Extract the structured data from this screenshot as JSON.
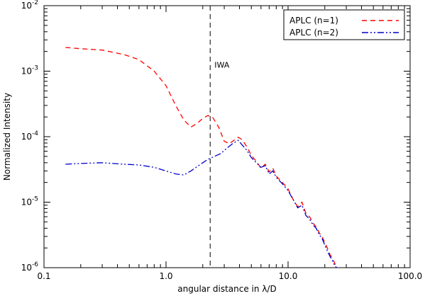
{
  "chart_data": {
    "type": "line",
    "xlabel": "angular distance in λ/D",
    "ylabel": "Normalized Intensity",
    "xscale": "log",
    "yscale": "log",
    "xlim": [
      0.1,
      100.0
    ],
    "ylim": [
      1e-06,
      0.01
    ],
    "x_tick_labels": [
      {
        "value": 0.1,
        "label": "0.1"
      },
      {
        "value": 1.0,
        "label": "1.0"
      },
      {
        "value": 10.0,
        "label": "10.0"
      },
      {
        "value": 100.0,
        "label": "100.0"
      }
    ],
    "y_tick_labels": [
      {
        "value": 1e-06,
        "base": "10",
        "exp": "-6"
      },
      {
        "value": 1e-05,
        "base": "10",
        "exp": "-5"
      },
      {
        "value": 0.0001,
        "base": "10",
        "exp": "-4"
      },
      {
        "value": 0.001,
        "base": "10",
        "exp": "-3"
      },
      {
        "value": 0.01,
        "base": "10",
        "exp": "-2"
      }
    ],
    "legend_position": "top-right",
    "annotations": [
      {
        "text": "IWA",
        "x": 2.3,
        "y": 0.00125
      }
    ],
    "vline": {
      "x": 2.3,
      "style": "dashed",
      "color": "#000000"
    },
    "series": [
      {
        "name": "APLC (n=1)",
        "color": "#ff0000",
        "style": "dashed",
        "points": [
          [
            0.15,
            0.0023
          ],
          [
            0.2,
            0.0022
          ],
          [
            0.3,
            0.0021
          ],
          [
            0.45,
            0.0018
          ],
          [
            0.6,
            0.0015
          ],
          [
            0.8,
            0.001
          ],
          [
            1.0,
            0.0006
          ],
          [
            1.2,
            0.0003
          ],
          [
            1.4,
            0.00018
          ],
          [
            1.6,
            0.00014
          ],
          [
            1.8,
            0.00016
          ],
          [
            2.0,
            0.00019
          ],
          [
            2.2,
            0.00021
          ],
          [
            2.4,
            0.0002
          ],
          [
            2.7,
            0.00014
          ],
          [
            3.0,
            8.5e-05
          ],
          [
            3.3,
            7.8e-05
          ],
          [
            3.6,
            8.8e-05
          ],
          [
            3.9,
            9.8e-05
          ],
          [
            4.2,
            9e-05
          ],
          [
            4.6,
            7e-05
          ],
          [
            5.0,
            5.2e-05
          ],
          [
            5.5,
            4.2e-05
          ],
          [
            6.0,
            3.3e-05
          ],
          [
            6.5,
            3.8e-05
          ],
          [
            7.0,
            2.9e-05
          ],
          [
            7.5,
            3.3e-05
          ],
          [
            8.0,
            2.5e-05
          ],
          [
            9.0,
            2e-05
          ],
          [
            10.0,
            1.6e-05
          ],
          [
            11.0,
            1.1e-05
          ],
          [
            12.0,
            8.5e-06
          ],
          [
            13.0,
            1e-05
          ],
          [
            14.0,
            6.8e-06
          ],
          [
            15.0,
            6e-06
          ],
          [
            16.0,
            4.8e-06
          ],
          [
            17.0,
            4.2e-06
          ],
          [
            18.0,
            3.4e-06
          ],
          [
            19.0,
            3e-06
          ],
          [
            20.0,
            2.4e-06
          ],
          [
            21.0,
            2e-06
          ],
          [
            22.0,
            1.6e-06
          ],
          [
            23.0,
            1.4e-06
          ],
          [
            24.0,
            1.2e-06
          ],
          [
            25.0,
            1e-06
          ]
        ]
      },
      {
        "name": "APLC (n=2)",
        "color": "#0000cc",
        "style": "dash-dot-dot",
        "points": [
          [
            0.15,
            3.8e-05
          ],
          [
            0.2,
            3.9e-05
          ],
          [
            0.3,
            4e-05
          ],
          [
            0.45,
            3.8e-05
          ],
          [
            0.6,
            3.7e-05
          ],
          [
            0.8,
            3.4e-05
          ],
          [
            1.0,
            3e-05
          ],
          [
            1.2,
            2.7e-05
          ],
          [
            1.4,
            2.6e-05
          ],
          [
            1.6,
            3e-05
          ],
          [
            1.8,
            3.5e-05
          ],
          [
            2.0,
            4e-05
          ],
          [
            2.2,
            4.5e-05
          ],
          [
            2.5,
            5e-05
          ],
          [
            2.8,
            5.5e-05
          ],
          [
            3.1,
            6.5e-05
          ],
          [
            3.5,
            7.8e-05
          ],
          [
            3.9,
            8.8e-05
          ],
          [
            4.2,
            7.5e-05
          ],
          [
            4.6,
            6.2e-05
          ],
          [
            5.0,
            4.8e-05
          ],
          [
            5.5,
            4e-05
          ],
          [
            6.0,
            3.4e-05
          ],
          [
            6.5,
            3.6e-05
          ],
          [
            7.0,
            2.7e-05
          ],
          [
            7.5,
            3e-05
          ],
          [
            8.0,
            2.4e-05
          ],
          [
            9.0,
            1.9e-05
          ],
          [
            10.0,
            1.5e-05
          ],
          [
            11.0,
            1.1e-05
          ],
          [
            12.0,
            8.2e-06
          ],
          [
            13.0,
            9e-06
          ],
          [
            14.0,
            6.3e-06
          ],
          [
            15.0,
            5.5e-06
          ],
          [
            16.0,
            4.5e-06
          ],
          [
            17.0,
            4e-06
          ],
          [
            18.0,
            3.2e-06
          ],
          [
            19.0,
            2.8e-06
          ],
          [
            20.0,
            2.2e-06
          ],
          [
            21.0,
            1.8e-06
          ],
          [
            22.0,
            1.5e-06
          ],
          [
            23.0,
            1.3e-06
          ],
          [
            24.0,
            1.1e-06
          ],
          [
            25.0,
            1e-06
          ]
        ]
      }
    ]
  }
}
